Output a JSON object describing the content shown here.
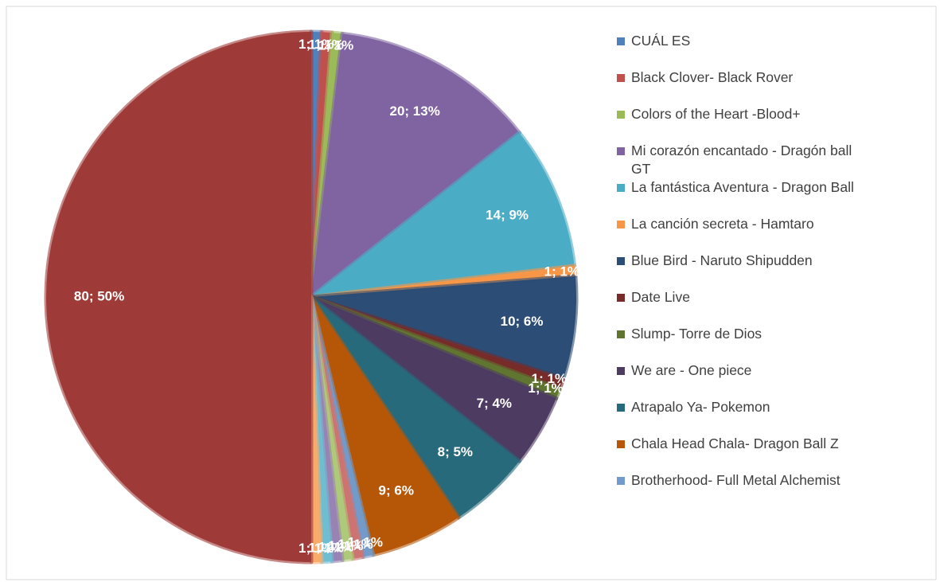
{
  "chart_data": {
    "type": "pie",
    "categories": [
      "CUÁL ES",
      "Black Clover- Black Rover",
      "Colors of the Heart -Blood+",
      "Mi corazón encantado - Dragón ball GT",
      "La fantástica Aventura - Dragon Ball",
      "La canción secreta - Hamtaro",
      "Blue Bird - Naruto Shipudden",
      "Date Live",
      "Slump- Torre de Dios",
      "We are - One piece",
      "Atrapalo Ya- Pokemon",
      "Chala Head Chala- Dragon Ball Z",
      "Brotherhood- Full Metal Alchemist",
      null,
      null,
      null,
      null,
      null,
      null
    ],
    "values": [
      1,
      1,
      1,
      20,
      14,
      1,
      10,
      1,
      1,
      7,
      8,
      9,
      1,
      1,
      1,
      1,
      1,
      1,
      80
    ],
    "value_labels": [
      "1; 1%",
      "1; 1%",
      "1; 1%",
      "20; 13%",
      "14; 9%",
      "1; 1%",
      "10; 6%",
      "1; 1%",
      "1; 1%",
      "7; 4%",
      "8; 5%",
      "9; 6%",
      "1; 1%",
      "1; 1%",
      "1; 1%",
      "1; 1%",
      "1; 1%",
      "1; 1%",
      "80; 50%"
    ],
    "colors": [
      "#4f81bd",
      "#c0504d",
      "#9bbb59",
      "#8064a2",
      "#4bacc6",
      "#f79646",
      "#2c4d75",
      "#772c2a",
      "#5f7530",
      "#4d3b62",
      "#276a7c",
      "#b65708",
      "#729aca",
      "#cd7371",
      "#afc97a",
      "#9983b5",
      "#6fbdd1",
      "#f9ab6b",
      "#9e3a38"
    ]
  }
}
